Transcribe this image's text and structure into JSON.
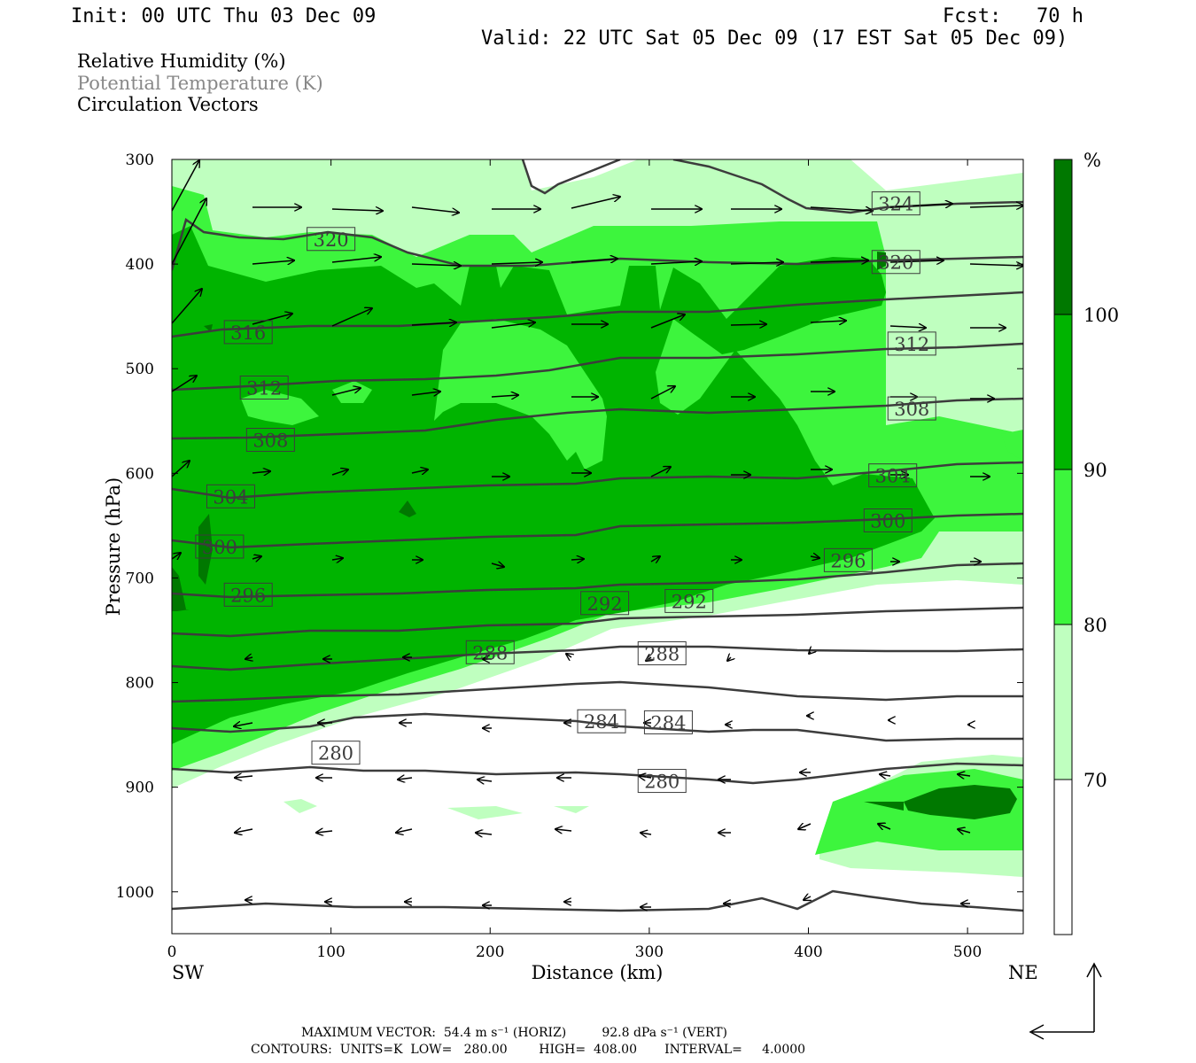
{
  "header": {
    "init": "Init: 00 UTC Thu 03 Dec 09",
    "fcst": "Fcst:   70 h",
    "valid": "Valid: 22 UTC Sat 05 Dec 09 (17 EST Sat 05 Dec 09)"
  },
  "legend": {
    "line1": "Relative Humidity (%)",
    "line2": "Potential Temperature (K)",
    "line3": "Circulation Vectors"
  },
  "footer": {
    "max_vector": "MAXIMUM VECTOR:  54.4 m s⁻¹ (HORIZ)         92.8 dPa s⁻¹ (VERT)",
    "contours": "CONTOURS:  UNITS=K  LOW=   280.00        HIGH=  408.00       INTERVAL=     4.0000"
  },
  "colors": {
    "rh_70_80": "#bfffbf",
    "rh_80_90": "#3df53d",
    "rh_90_100": "#00b400",
    "rh_100": "#007800",
    "theta_line": "#3c3c3c",
    "text_gray": "#888888"
  },
  "chart_data": {
    "type": "cross-section",
    "xlabel": "Distance (km)",
    "ylabel": "Pressure (hPa)",
    "x_ticks": [
      0,
      100,
      200,
      300,
      400,
      500
    ],
    "y_ticks": [
      300,
      400,
      500,
      600,
      700,
      800,
      900,
      1000
    ],
    "xlim": [
      0,
      535
    ],
    "ylim": [
      300,
      1040
    ],
    "x_end_labels": {
      "left": "SW",
      "right": "NE"
    },
    "colorbar": {
      "unit": "%",
      "levels": [
        "70",
        "80",
        "90",
        "100"
      ]
    },
    "contour_labels": [
      {
        "text": "324",
        "x": 455,
        "p": 342
      },
      {
        "text": "320",
        "x": 100,
        "p": 376
      },
      {
        "text": "320",
        "x": 455,
        "p": 398
      },
      {
        "text": "316",
        "x": 48,
        "p": 465
      },
      {
        "text": "312",
        "x": 58,
        "p": 518
      },
      {
        "text": "312",
        "x": 465,
        "p": 476
      },
      {
        "text": "308",
        "x": 62,
        "p": 568
      },
      {
        "text": "308",
        "x": 465,
        "p": 538
      },
      {
        "text": "304",
        "x": 37,
        "p": 622
      },
      {
        "text": "304",
        "x": 453,
        "p": 602
      },
      {
        "text": "300",
        "x": 30,
        "p": 670
      },
      {
        "text": "300",
        "x": 450,
        "p": 645
      },
      {
        "text": "296",
        "x": 48,
        "p": 716
      },
      {
        "text": "296",
        "x": 425,
        "p": 683
      },
      {
        "text": "292",
        "x": 272,
        "p": 724
      },
      {
        "text": "292",
        "x": 325,
        "p": 722
      },
      {
        "text": "288",
        "x": 200,
        "p": 771
      },
      {
        "text": "288",
        "x": 308,
        "p": 772
      },
      {
        "text": "284",
        "x": 270,
        "p": 837
      },
      {
        "text": "284",
        "x": 312,
        "p": 838
      },
      {
        "text": "280",
        "x": 103,
        "p": 867
      },
      {
        "text": "280",
        "x": 308,
        "p": 894
      }
    ]
  }
}
